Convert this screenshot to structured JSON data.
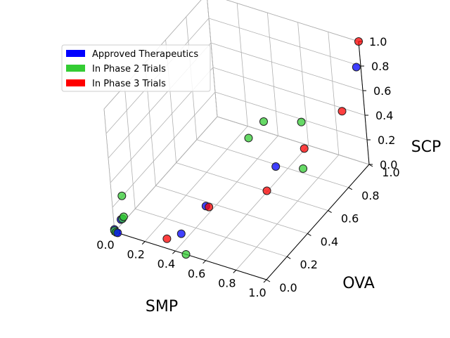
{
  "chart_data": {
    "type": "scatter",
    "projection": "3d",
    "axes": {
      "x": {
        "label": "SMP",
        "ticks": [
          "0.0",
          "0.2",
          "0.4",
          "0.6",
          "0.8",
          "1.0"
        ],
        "range": [
          0,
          1
        ]
      },
      "y": {
        "label": "OVA",
        "ticks": [
          "0.0",
          "0.2",
          "0.4",
          "0.6",
          "0.8",
          "1.0"
        ],
        "range": [
          0,
          1
        ]
      },
      "z": {
        "label": "SCP",
        "ticks": [
          "0.0",
          "0.2",
          "0.4",
          "0.6",
          "0.8",
          "1.0"
        ],
        "range": [
          0,
          1
        ]
      }
    },
    "grid": true,
    "legend": {
      "placement": "top-left",
      "entries": [
        {
          "label": "Approved Therapeutics",
          "color": "#0000ff"
        },
        {
          "label": "In Phase 2 Trials",
          "color": "#33cc33"
        },
        {
          "label": "In Phase 3 Trials",
          "color": "#ff0000"
        }
      ]
    },
    "series": [
      {
        "name": "Approved Therapeutics",
        "color": "#0000ff",
        "points": [
          {
            "x": 0.97,
            "y": 1.0,
            "z": 0.78
          },
          {
            "x": 0.9,
            "y": 0.3,
            "z": 0.6
          },
          {
            "x": 0.45,
            "y": 0.24,
            "z": 0.16
          },
          {
            "x": 0.45,
            "y": 0.0,
            "z": 0.16
          },
          {
            "x": 0.05,
            "y": 0.0,
            "z": 0.12
          },
          {
            "x": 0.0,
            "y": 0.0,
            "z": 0.02
          },
          {
            "x": 0.02,
            "y": 0.0,
            "z": 0.0
          }
        ]
      },
      {
        "name": "In Phase 2 Trials",
        "color": "#33cc33",
        "points": [
          {
            "x": 0.84,
            "y": 0.62,
            "z": 0.26
          },
          {
            "x": 0.84,
            "y": 0.64,
            "z": 0.62
          },
          {
            "x": 0.57,
            "y": 0.66,
            "z": 0.5
          },
          {
            "x": 0.58,
            "y": 0.5,
            "z": 0.52
          },
          {
            "x": 0.47,
            "y": 0.0,
            "z": 0.0
          },
          {
            "x": 0.07,
            "y": 0.0,
            "z": 0.32
          },
          {
            "x": 0.07,
            "y": 0.0,
            "z": 0.15
          },
          {
            "x": 0.06,
            "y": 0.0,
            "z": 0.13
          },
          {
            "x": 0.0,
            "y": 0.0,
            "z": 0.01
          },
          {
            "x": 0.01,
            "y": 0.0,
            "z": 0.0
          }
        ]
      },
      {
        "name": "In Phase 3 Trials",
        "color": "#ff0000",
        "points": [
          {
            "x": 1.0,
            "y": 0.8,
            "z": 0.62
          },
          {
            "x": 1.0,
            "y": 1.0,
            "z": 1.0
          },
          {
            "x": 0.89,
            "y": 0.58,
            "z": 0.48
          },
          {
            "x": 0.78,
            "y": 0.36,
            "z": 0.3
          },
          {
            "x": 0.35,
            "y": 0.0,
            "z": 0.08
          },
          {
            "x": 0.47,
            "y": 0.24,
            "z": 0.16
          }
        ]
      }
    ]
  }
}
